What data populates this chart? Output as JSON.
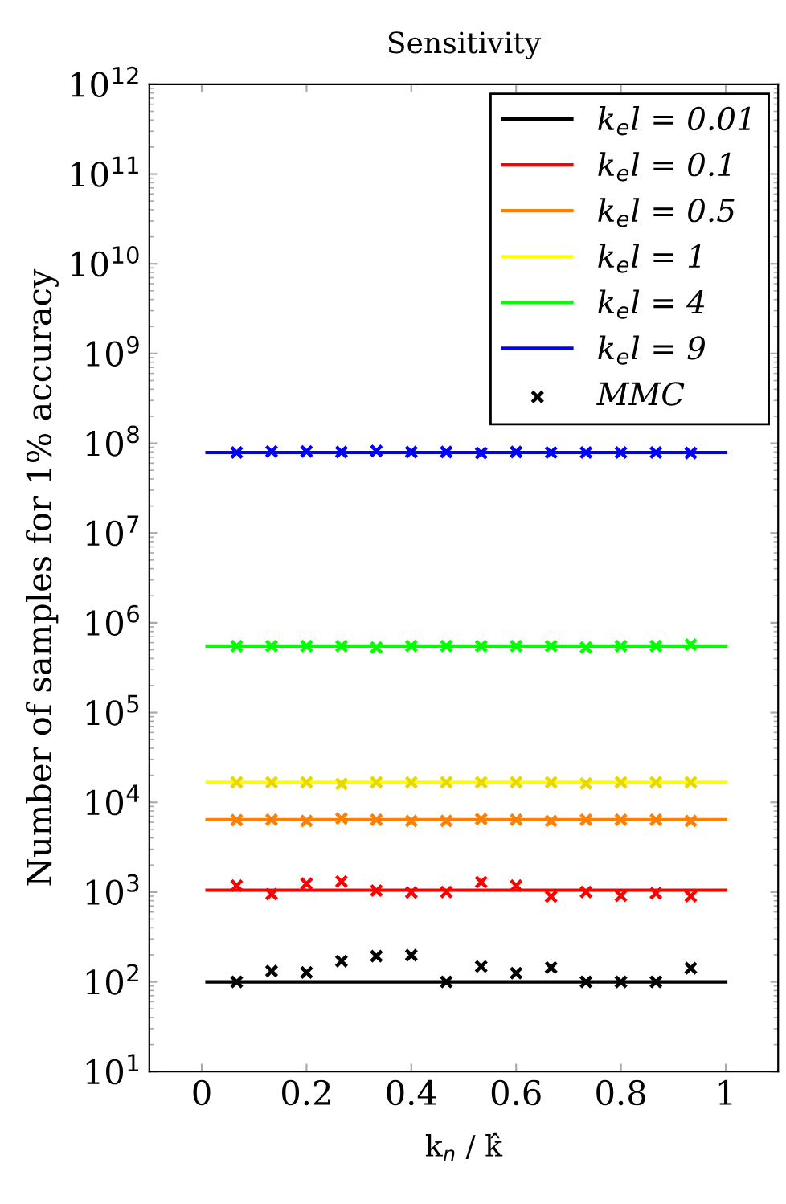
{
  "chart_data": {
    "type": "line",
    "title": "Sensitivity",
    "xlabel": "k$_{n}$ / k̂",
    "ylabel": "Number of samples for 1% accuracy",
    "log": "y",
    "xlim": [
      -0.1,
      1.1
    ],
    "xticks": [
      0,
      0.2,
      0.4,
      0.6,
      0.8,
      1
    ],
    "ylim": [
      10,
      1000000000000
    ],
    "yticks": [
      {
        "value": 10,
        "label": "10$^{1}$"
      },
      {
        "value": 100,
        "label": "10$^{2}$"
      },
      {
        "value": 1000,
        "label": "10$^{3}$"
      },
      {
        "value": 10000,
        "label": "10$^{4}$"
      },
      {
        "value": 100000,
        "label": "10$^{5}$"
      },
      {
        "value": 1000000,
        "label": "10$^{6}$"
      },
      {
        "value": 10000000,
        "label": "10$^{7}$"
      },
      {
        "value": 100000000,
        "label": "10$^{8}$"
      },
      {
        "value": 1000000000,
        "label": "10$^{9}$"
      },
      {
        "value": 10000000000,
        "label": "10$^{10}$"
      },
      {
        "value": 100000000000,
        "label": "10$^{11}$"
      },
      {
        "value": 1000000000000,
        "label": "10$^{12}$"
      }
    ],
    "grid": false,
    "legend": "top right",
    "series": [
      {
        "type": "line",
        "name": "k$_{e}$l = 0.01",
        "color": "#000000",
        "x": [
          0.01,
          1
        ],
        "values": [
          100,
          100
        ],
        "marker": "none",
        "line_style": "solid"
      },
      {
        "type": "line",
        "name": "k$_{e}$l = 0.1",
        "color": "#ff0000",
        "x": [
          0.01,
          1
        ],
        "values": [
          1050,
          1050
        ],
        "marker": "none",
        "line_style": "solid"
      },
      {
        "type": "line",
        "name": "k$_{e}$l = 0.5",
        "color": "#ff8000",
        "x": [
          0.01,
          1
        ],
        "values": [
          6400,
          6400
        ],
        "marker": "none",
        "line_style": "solid"
      },
      {
        "type": "line",
        "name": "k$_{e}$l = 1",
        "color": "#ffff00",
        "x": [
          0.01,
          1
        ],
        "values": [
          16700,
          16700
        ],
        "marker": "none",
        "line_style": "solid"
      },
      {
        "type": "line",
        "name": "k$_{e}$l = 4",
        "color": "#00ff00",
        "x": [
          0.01,
          1
        ],
        "values": [
          550000,
          550000
        ],
        "marker": "none",
        "line_style": "solid"
      },
      {
        "type": "line",
        "name": "k$_{e}$l = 9",
        "color": "#0000ff",
        "x": [
          0.01,
          1
        ],
        "values": [
          79000000,
          79000000
        ],
        "marker": "none",
        "line_style": "solid"
      },
      {
        "type": "scatter",
        "color": "#ff0000",
        "marker": "cross",
        "x": [
          0.0667,
          0.1333,
          0.2,
          0.2667,
          0.3333,
          0.4,
          0.4667,
          0.5333,
          0.6,
          0.6667,
          0.7333,
          0.8,
          0.8667,
          0.9333
        ],
        "values": [
          1180,
          950,
          1240,
          1310,
          1040,
          990,
          1000,
          1290,
          1180,
          890,
          1000,
          910,
          970,
          900
        ]
      },
      {
        "type": "scatter",
        "color": "#ff8000",
        "marker": "cross",
        "x": [
          0.0667,
          0.1333,
          0.2,
          0.2667,
          0.3333,
          0.4,
          0.4667,
          0.5333,
          0.6,
          0.6667,
          0.7333,
          0.8,
          0.8667,
          0.9333
        ],
        "values": [
          6340,
          6400,
          6200,
          6600,
          6400,
          6200,
          6200,
          6500,
          6400,
          6200,
          6400,
          6400,
          6400,
          6200
        ]
      },
      {
        "type": "scatter",
        "color": "#e8d800",
        "marker": "cross",
        "x": [
          0.0667,
          0.1333,
          0.2,
          0.2667,
          0.3333,
          0.4,
          0.4667,
          0.5333,
          0.6,
          0.6667,
          0.7333,
          0.8,
          0.8667,
          0.9333
        ],
        "values": [
          16700,
          16700,
          16700,
          16000,
          16700,
          16700,
          16700,
          16700,
          16700,
          16700,
          16200,
          16700,
          16700,
          16700
        ]
      },
      {
        "type": "scatter",
        "color": "#00ff00",
        "marker": "cross",
        "x": [
          0.0667,
          0.1333,
          0.2,
          0.2667,
          0.3333,
          0.4,
          0.4667,
          0.5333,
          0.6,
          0.6667,
          0.7333,
          0.8,
          0.8667,
          0.9333
        ],
        "values": [
          550000,
          550000,
          550000,
          550000,
          530000,
          550000,
          550000,
          550000,
          550000,
          550000,
          530000,
          550000,
          550000,
          570000
        ]
      },
      {
        "type": "scatter",
        "color": "#0000ff",
        "marker": "cross",
        "x": [
          0.0667,
          0.1333,
          0.2,
          0.2667,
          0.3333,
          0.4,
          0.4667,
          0.5333,
          0.6,
          0.6667,
          0.7333,
          0.8,
          0.8667,
          0.9333
        ],
        "values": [
          79000000,
          81000000,
          81000000,
          80000000,
          82000000,
          80000000,
          80000000,
          78000000,
          80000000,
          79000000,
          79000000,
          79000000,
          79000000,
          78000000
        ]
      },
      {
        "type": "scatter",
        "name": "MMC",
        "color": "#000000",
        "marker": "cross",
        "x": [
          0.0667,
          0.1333,
          0.2,
          0.2667,
          0.3333,
          0.4,
          0.4667,
          0.5333,
          0.6,
          0.6667,
          0.7333,
          0.8,
          0.8667,
          0.9333
        ],
        "values": [
          100,
          132,
          127,
          170,
          193,
          198,
          100,
          148,
          125,
          144,
          100,
          100,
          100,
          142
        ]
      }
    ]
  }
}
